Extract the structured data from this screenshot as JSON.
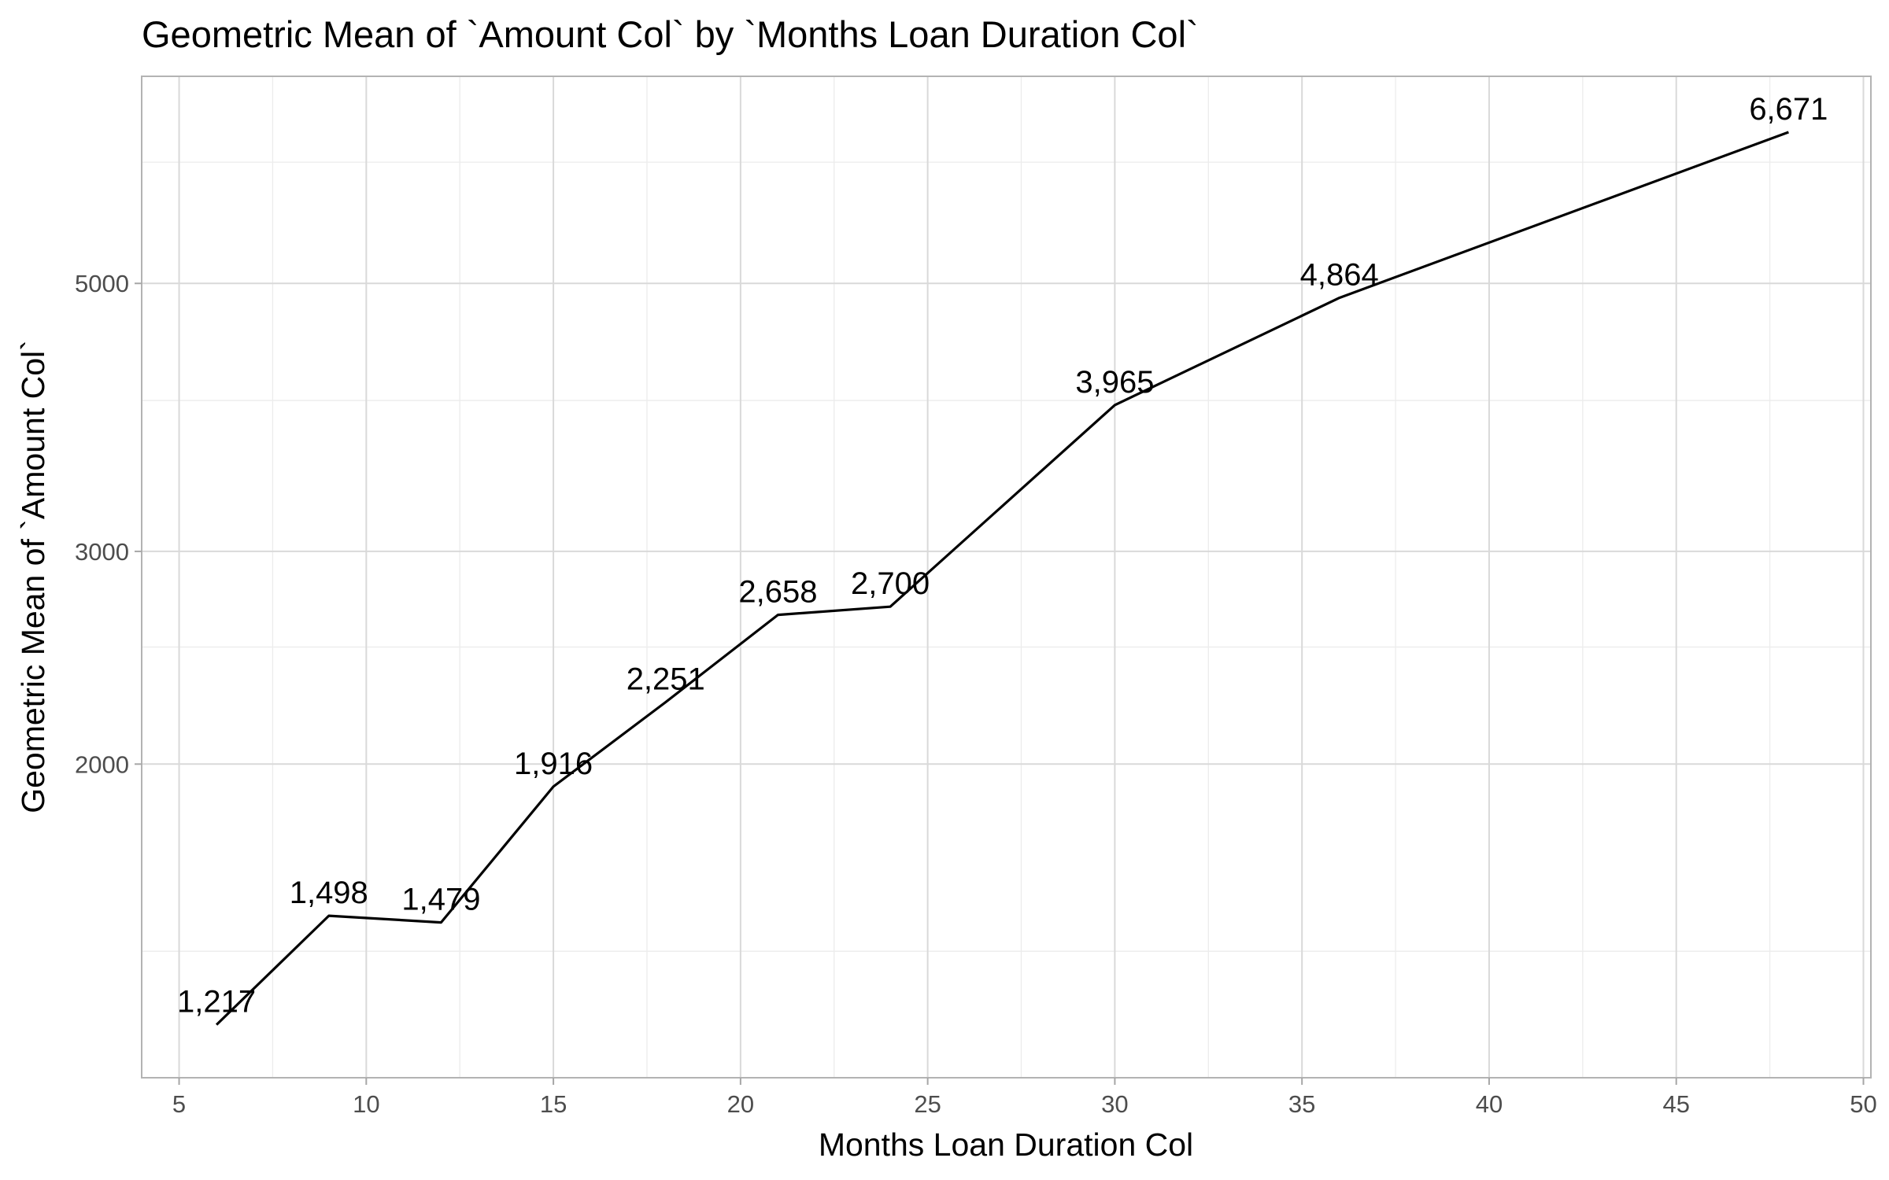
{
  "chart_data": {
    "type": "line",
    "title": "Geometric Mean of `Amount Col` by `Months Loan Duration Col`",
    "xlabel": "Months Loan Duration Col",
    "ylabel": "Geometric Mean of `Amount Col`",
    "y_scale": "log",
    "grid": true,
    "legend": "none",
    "xlim": [
      4,
      50.2
    ],
    "ylim": [
      1100,
      7420
    ],
    "x_ticks": [
      5,
      10,
      15,
      20,
      25,
      30,
      35,
      40,
      45,
      50
    ],
    "x_minor_ticks": [
      7.5,
      12.5,
      17.5,
      22.5,
      27.5,
      32.5,
      37.5,
      42.5,
      47.5
    ],
    "y_ticks": [
      2000,
      3000,
      5000
    ],
    "y_minor_ticks": [
      1400,
      2500,
      4000,
      6300
    ],
    "series": [
      {
        "x": [
          6,
          9,
          12,
          15,
          18,
          21,
          24,
          30,
          36,
          48
        ],
        "y": [
          1217,
          1498,
          1479,
          1916,
          2251,
          2658,
          2700,
          3965,
          4864,
          6671
        ],
        "labels": [
          "1,217",
          "1,498",
          "1,479",
          "1,916",
          "2,251",
          "2,658",
          "2,700",
          "3,965",
          "4,864",
          "6,671"
        ],
        "color": "#000000"
      }
    ]
  }
}
